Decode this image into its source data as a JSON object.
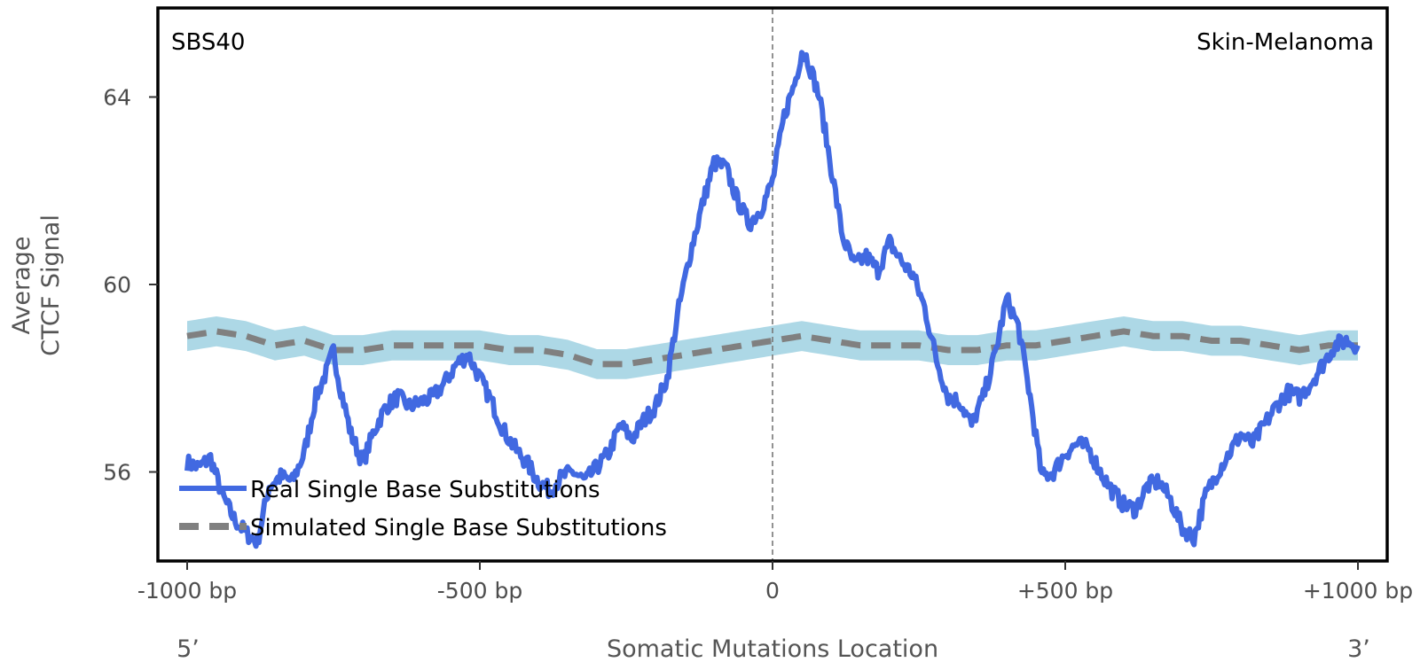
{
  "chart_data": {
    "type": "line",
    "signature_label": "SBS40",
    "cancer_type_label": "Skin-Melanoma",
    "xlabel": "Somatic Mutations Location",
    "ylabel_line1": "Average",
    "ylabel_line2": "CTCF Signal",
    "end_label_left": "5’",
    "end_label_right": "3’",
    "xlim": [
      -1050,
      1050
    ],
    "ylim": [
      54.1,
      65.9
    ],
    "x_ticks": [
      {
        "value": -1000,
        "label": "-1000 bp"
      },
      {
        "value": -500,
        "label": "-500 bp"
      },
      {
        "value": 0,
        "label": "0"
      },
      {
        "value": 500,
        "label": "+500 bp"
      },
      {
        "value": 1000,
        "label": "+1000 bp"
      }
    ],
    "y_ticks": [
      {
        "value": 56,
        "label": "56"
      },
      {
        "value": 60,
        "label": "60"
      },
      {
        "value": 64,
        "label": "64"
      }
    ],
    "vline_x": 0,
    "series": [
      {
        "name": "Real Single Base Substitutions",
        "style": "solid",
        "color": "#4169e1",
        "x": [
          -1000,
          -980,
          -960,
          -940,
          -920,
          -900,
          -880,
          -860,
          -840,
          -820,
          -800,
          -780,
          -760,
          -750,
          -740,
          -720,
          -700,
          -680,
          -660,
          -640,
          -620,
          -600,
          -580,
          -560,
          -540,
          -520,
          -500,
          -480,
          -460,
          -440,
          -420,
          -400,
          -380,
          -360,
          -340,
          -320,
          -300,
          -280,
          -260,
          -240,
          -220,
          -200,
          -180,
          -160,
          -140,
          -120,
          -100,
          -80,
          -60,
          -40,
          -20,
          0,
          20,
          40,
          50,
          60,
          80,
          100,
          120,
          140,
          160,
          180,
          200,
          220,
          240,
          260,
          280,
          300,
          320,
          340,
          360,
          380,
          400,
          420,
          440,
          460,
          480,
          500,
          520,
          540,
          560,
          580,
          600,
          620,
          640,
          660,
          680,
          700,
          720,
          740,
          760,
          780,
          800,
          820,
          840,
          860,
          880,
          900,
          920,
          940,
          960,
          980,
          1000
        ],
        "values": [
          56.2,
          56.1,
          56.3,
          55.5,
          55.0,
          54.7,
          54.5,
          55.7,
          55.9,
          55.8,
          56.4,
          57.6,
          58.2,
          58.6,
          57.9,
          56.8,
          56.2,
          56.9,
          57.4,
          57.6,
          57.4,
          57.5,
          57.6,
          57.9,
          58.3,
          58.5,
          58.0,
          57.5,
          56.9,
          56.5,
          56.2,
          55.8,
          55.6,
          55.9,
          56.0,
          55.8,
          56.1,
          56.4,
          57.0,
          56.7,
          57.1,
          57.4,
          58.0,
          59.5,
          60.7,
          61.7,
          62.6,
          62.5,
          61.8,
          61.3,
          61.6,
          62.2,
          63.6,
          64.4,
          65.0,
          64.8,
          64.0,
          62.5,
          61.0,
          60.4,
          60.6,
          60.3,
          60.9,
          60.5,
          60.2,
          59.5,
          58.4,
          57.6,
          57.5,
          57.0,
          57.6,
          58.5,
          59.7,
          59.1,
          57.6,
          55.9,
          56.0,
          56.4,
          56.6,
          56.5,
          56.0,
          55.6,
          55.3,
          55.2,
          55.7,
          55.8,
          55.4,
          54.8,
          54.6,
          55.5,
          56.0,
          56.4,
          56.8,
          56.6,
          57.0,
          57.4,
          57.7,
          57.6,
          57.9,
          58.3,
          58.7,
          58.8,
          58.7
        ]
      },
      {
        "name": "Simulated Single Base Substitutions",
        "style": "dashed",
        "color": "#808080",
        "band_color": "#add8e6",
        "band_halfwidth": 0.32,
        "x": [
          -1000,
          -950,
          -900,
          -850,
          -800,
          -750,
          -700,
          -650,
          -600,
          -550,
          -500,
          -450,
          -400,
          -350,
          -300,
          -250,
          -200,
          -150,
          -100,
          -50,
          0,
          50,
          100,
          150,
          200,
          250,
          300,
          350,
          400,
          450,
          500,
          550,
          600,
          650,
          700,
          750,
          800,
          850,
          900,
          950,
          1000
        ],
        "values": [
          58.9,
          59.0,
          58.9,
          58.7,
          58.8,
          58.6,
          58.6,
          58.7,
          58.7,
          58.7,
          58.7,
          58.6,
          58.6,
          58.5,
          58.3,
          58.3,
          58.4,
          58.5,
          58.6,
          58.7,
          58.8,
          58.9,
          58.8,
          58.7,
          58.7,
          58.7,
          58.6,
          58.6,
          58.7,
          58.7,
          58.8,
          58.9,
          59.0,
          58.9,
          58.9,
          58.8,
          58.8,
          58.7,
          58.6,
          58.7,
          58.7
        ]
      }
    ],
    "legend_position": "bottom-left"
  }
}
